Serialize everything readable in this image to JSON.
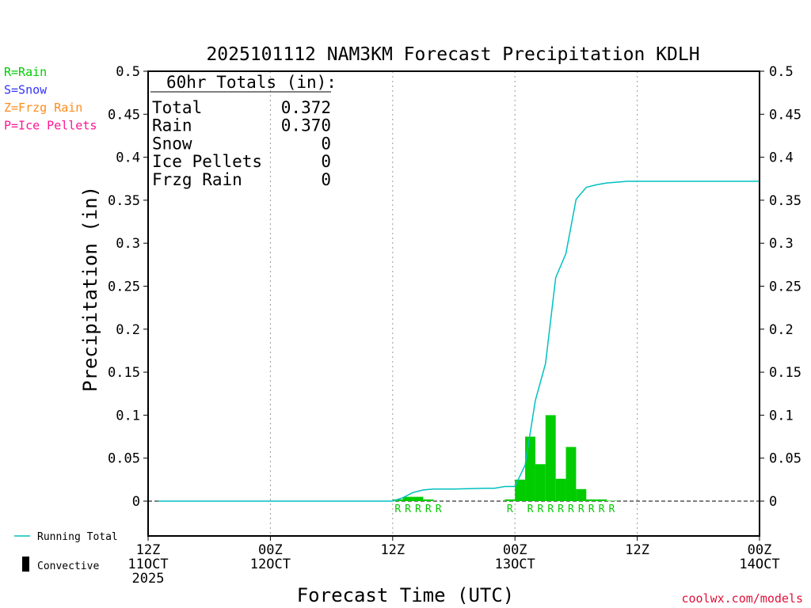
{
  "chart_data": {
    "type": "bar",
    "title": "2025101112 NAM3KM Forecast Precipitation KDLH",
    "xlabel": "Forecast Time (UTC)",
    "ylabel": "Precipitation (in)",
    "ylim": [
      -0.04,
      0.5
    ],
    "xlim_hours": [
      0,
      60
    ],
    "yticks": [
      0,
      0.05,
      0.1,
      0.15,
      0.2,
      0.25,
      0.3,
      0.35,
      0.4,
      0.45,
      0.5
    ],
    "ytick_labels": [
      "0",
      "0.05",
      "0.1",
      "0.15",
      "0.2",
      "0.25",
      "0.3",
      "0.35",
      "0.4",
      "0.45",
      "0.5"
    ],
    "xticks": [
      {
        "hour": 0,
        "lines": [
          "12Z",
          "11OCT",
          "2025"
        ]
      },
      {
        "hour": 12,
        "lines": [
          "00Z",
          "12OCT"
        ]
      },
      {
        "hour": 24,
        "lines": [
          "12Z"
        ]
      },
      {
        "hour": 36,
        "lines": [
          "00Z",
          "13OCT"
        ]
      },
      {
        "hour": 48,
        "lines": [
          "12Z"
        ]
      },
      {
        "hour": 60,
        "lines": [
          "00Z",
          "14OCT"
        ]
      }
    ],
    "grid_hours": [
      12,
      24,
      36,
      48
    ],
    "bars": {
      "name": "Rain",
      "color": "#00cc00",
      "width_hours": 1,
      "hour": [
        24,
        25,
        26,
        27,
        35,
        36,
        37,
        38,
        39,
        40,
        41,
        42,
        43,
        44,
        45
      ],
      "values": [
        0.002,
        0.005,
        0.005,
        0.002,
        0.002,
        0.025,
        0.075,
        0.043,
        0.1,
        0.026,
        0.063,
        0.014,
        0.002,
        0.002,
        0.0005
      ]
    },
    "running_total": {
      "name": "Running Total",
      "color": "#00c0c0",
      "hour": [
        1,
        24,
        25,
        26,
        27,
        28,
        30,
        33,
        34,
        35,
        36,
        37,
        38,
        39,
        40,
        41,
        42,
        43,
        44,
        45,
        46,
        47,
        48,
        60
      ],
      "values": [
        0,
        0,
        0.004,
        0.01,
        0.013,
        0.014,
        0.014,
        0.015,
        0.015,
        0.017,
        0.017,
        0.042,
        0.117,
        0.16,
        0.26,
        0.288,
        0.351,
        0.365,
        0.368,
        0.37,
        0.371,
        0.372,
        0.372,
        0.372
      ]
    },
    "ptype_markers": [
      {
        "hour": 24,
        "text": "R"
      },
      {
        "hour": 25,
        "text": "R"
      },
      {
        "hour": 26,
        "text": "R"
      },
      {
        "hour": 27,
        "text": "R"
      },
      {
        "hour": 28,
        "text": "R"
      },
      {
        "hour": 35,
        "text": "R"
      },
      {
        "hour": 37,
        "text": "R"
      },
      {
        "hour": 38,
        "text": "R"
      },
      {
        "hour": 39,
        "text": "R"
      },
      {
        "hour": 40,
        "text": "R"
      },
      {
        "hour": 41,
        "text": "R"
      },
      {
        "hour": 42,
        "text": "R"
      },
      {
        "hour": 43,
        "text": "R"
      },
      {
        "hour": 44,
        "text": "R"
      },
      {
        "hour": 45,
        "text": "R"
      }
    ],
    "totals_box": {
      "heading": "60hr Totals (in):",
      "rows": [
        {
          "label": "Total",
          "value": "0.372"
        },
        {
          "label": "Rain",
          "value": "0.370"
        },
        {
          "label": "Snow",
          "value": "0"
        },
        {
          "label": "Ice Pellets",
          "value": "0"
        },
        {
          "label": "Frzg Rain",
          "value": "0"
        }
      ]
    },
    "ptype_legend": [
      {
        "text": "R=Rain",
        "color": "#00cc00"
      },
      {
        "text": "S=Snow",
        "color": "#3333ff"
      },
      {
        "text": "Z=Frzg Rain",
        "color": "#ff8c1a"
      },
      {
        "text": "P=Ice Pellets",
        "color": "#ff1493"
      }
    ],
    "series_legend": [
      {
        "text": "Running Total",
        "color": "#00c0c0",
        "kind": "line"
      },
      {
        "text": "Convective",
        "color": "#000000",
        "kind": "bar"
      }
    ],
    "credit": "coolwx.com/models"
  }
}
